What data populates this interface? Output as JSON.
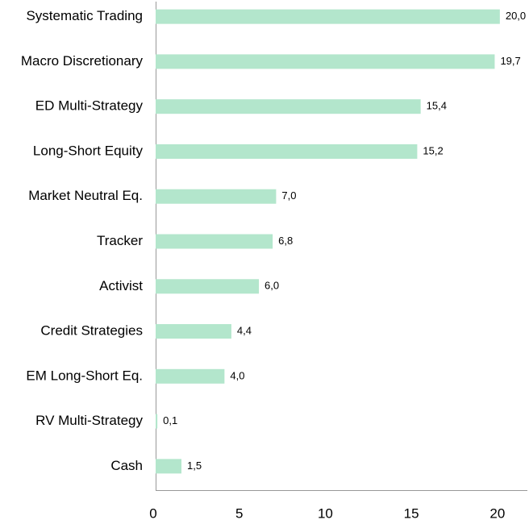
{
  "chart_data": {
    "type": "hbar",
    "categories": [
      "Systematic Trading",
      "Macro Discretionary",
      "ED Multi-Strategy",
      "Long-Short Equity",
      "Market Neutral Eq.",
      "Tracker",
      "Activist",
      "Credit Strategies",
      "EM Long-Short Eq.",
      "RV Multi-Strategy",
      "Cash"
    ],
    "values": [
      20.0,
      19.7,
      15.4,
      15.2,
      7.0,
      6.8,
      6.0,
      4.4,
      4.0,
      0.1,
      1.5
    ],
    "value_labels": [
      "20,0",
      "19,7",
      "15,4",
      "15,2",
      "7,0",
      "6,8",
      "6,0",
      "4,4",
      "4,0",
      "0,1",
      "1,5"
    ],
    "color": "#b3e6cc",
    "xlim": [
      0,
      21.6
    ],
    "xticks": [
      0,
      5,
      10,
      15,
      20
    ]
  }
}
